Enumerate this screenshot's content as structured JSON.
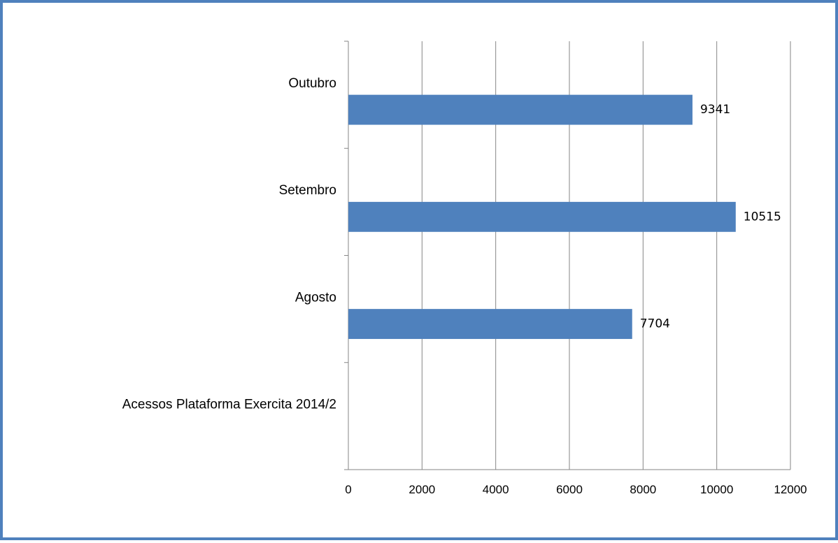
{
  "chart_data": {
    "type": "bar",
    "orientation": "horizontal",
    "categories": [
      "Acessos Plataforma Exercita 2014/2",
      "Agosto",
      "Setembro",
      "Outubro"
    ],
    "values": [
      null,
      7704,
      10515,
      9341
    ],
    "data_labels": [
      "",
      "7704",
      "10515",
      "9341"
    ],
    "xlim": [
      0,
      12000
    ],
    "x_ticks": [
      0,
      2000,
      4000,
      6000,
      8000,
      10000,
      12000
    ],
    "x_tick_labels": [
      "0",
      "2000",
      "4000",
      "6000",
      "8000",
      "10000",
      "12000"
    ],
    "grid": "vertical",
    "legend": "none",
    "bar_color": "#4f81bd",
    "grid_color": "#868686",
    "border_color": "#4f81bd"
  }
}
